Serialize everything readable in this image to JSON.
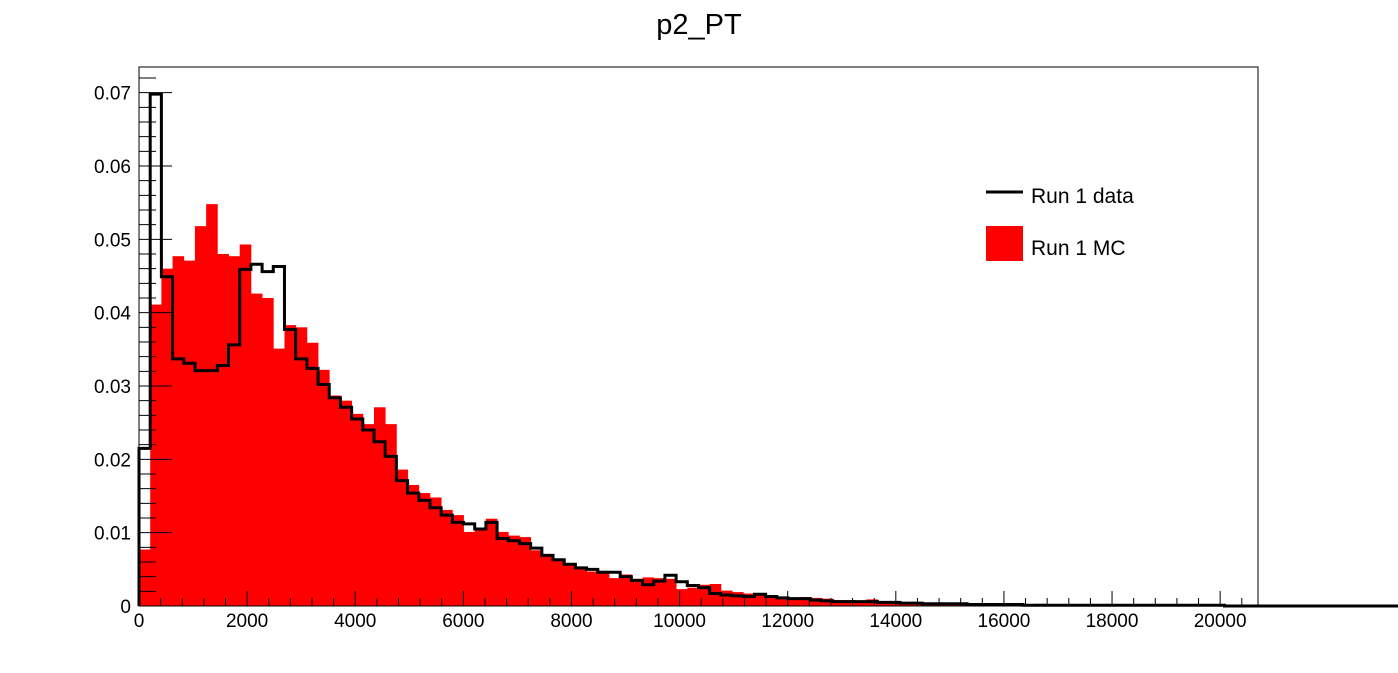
{
  "chart_data": {
    "type": "bar",
    "title": "p2_PT",
    "xlabel": "",
    "ylabel": "",
    "xlim": [
      0,
      20700
    ],
    "ylim": [
      0,
      0.0735
    ],
    "bin_width": 207,
    "x_ticks": [
      0,
      2000,
      4000,
      6000,
      8000,
      10000,
      12000,
      14000,
      16000,
      18000,
      20000
    ],
    "x_tick_labels": [
      "0",
      "2000",
      "4000",
      "6000",
      "8000",
      "10000",
      "12000",
      "14000",
      "16000",
      "18000",
      "20000"
    ],
    "y_ticks": [
      0,
      0.01,
      0.02,
      0.03,
      0.04,
      0.05,
      0.06,
      0.07
    ],
    "y_tick_labels": [
      "0",
      "0.01",
      "0.02",
      "0.03",
      "0.04",
      "0.05",
      "0.06",
      "0.07"
    ],
    "legend_position": "top-right",
    "series": [
      {
        "name": "Run 1 data",
        "style": "step",
        "color": "#000000",
        "values": [
          0.0215,
          0.0698,
          0.0449,
          0.0337,
          0.0331,
          0.0321,
          0.0321,
          0.0328,
          0.0356,
          0.0459,
          0.0466,
          0.0456,
          0.0463,
          0.0377,
          0.0337,
          0.0324,
          0.0302,
          0.0284,
          0.0271,
          0.0255,
          0.024,
          0.0224,
          0.0204,
          0.0171,
          0.0154,
          0.0144,
          0.0134,
          0.0124,
          0.0114,
          0.0112,
          0.0105,
          0.0114,
          0.0092,
          0.0089,
          0.0085,
          0.0079,
          0.0069,
          0.0063,
          0.0057,
          0.0052,
          0.005,
          0.0046,
          0.0046,
          0.004,
          0.0035,
          0.0029,
          0.0034,
          0.0042,
          0.0033,
          0.0028,
          0.0025,
          0.0017,
          0.0015,
          0.0014,
          0.0013,
          0.0016,
          0.0013,
          0.0011,
          0.001,
          0.001,
          0.0008,
          0.0007,
          0.0006,
          0.0006,
          0.0006,
          0.0006,
          0.0005,
          0.0005,
          0.0004,
          0.0004,
          0.0003,
          0.0003,
          0.0003,
          0.0003,
          0.0002,
          0.0002,
          0.0002,
          0.0002,
          0.0002,
          0.0001,
          0.0001,
          0.0001,
          0.0001,
          0.0001,
          0.0001,
          0.0001,
          0.0001,
          0.0001,
          0.0001,
          0.0001,
          0.0001,
          0.0001,
          0.0001,
          0.0001,
          0.0001,
          0.0001,
          0.0001,
          0,
          0,
          0,
          0,
          0,
          0,
          0,
          0,
          0,
          0,
          0,
          0,
          0,
          0,
          0,
          0,
          0,
          0,
          0
        ]
      },
      {
        "name": "Run 1 MC",
        "style": "filled",
        "color": "#ff0000",
        "values": [
          0.0077,
          0.0411,
          0.046,
          0.0477,
          0.0471,
          0.0518,
          0.0548,
          0.048,
          0.0477,
          0.0493,
          0.0426,
          0.042,
          0.0351,
          0.0383,
          0.038,
          0.0359,
          0.0322,
          0.0287,
          0.028,
          0.0262,
          0.0248,
          0.0271,
          0.0248,
          0.0186,
          0.0165,
          0.0154,
          0.0148,
          0.0131,
          0.0124,
          0.0101,
          0.0107,
          0.0119,
          0.0101,
          0.0096,
          0.0094,
          0.0076,
          0.0071,
          0.0062,
          0.0058,
          0.0053,
          0.0047,
          0.0048,
          0.0038,
          0.0043,
          0.0037,
          0.0039,
          0.0038,
          0.0037,
          0.0023,
          0.0025,
          0.0029,
          0.003,
          0.0021,
          0.0019,
          0.0017,
          0.0017,
          0.0013,
          0.0012,
          0.0009,
          0.0012,
          0.0011,
          0.001,
          0.0008,
          0.0008,
          0.0007,
          0.0009,
          0.0006,
          0.0006,
          0.0005,
          0.0005,
          0.0004,
          0.0004,
          0.0004,
          0.0003,
          0.0003,
          0.0003,
          0.0002,
          0.0003,
          0.0002,
          0.0002,
          0.0003,
          0.0002,
          0.0002,
          0.0002,
          0.0002,
          0.0002,
          0.0001,
          0.0001,
          0.0001,
          0.0001,
          0.0001,
          0.0001,
          0.0001,
          0.0001,
          0.0001,
          0.0001,
          0.0001,
          0.0001,
          0.0001,
          0.0001,
          0.0001,
          0.0001,
          0.0001,
          0.0001,
          0.0001,
          0.0001,
          0.0001,
          0.0001,
          0.0001,
          0.0001,
          0.0001,
          0.0001,
          0.0001,
          0.0001
        ]
      }
    ]
  }
}
